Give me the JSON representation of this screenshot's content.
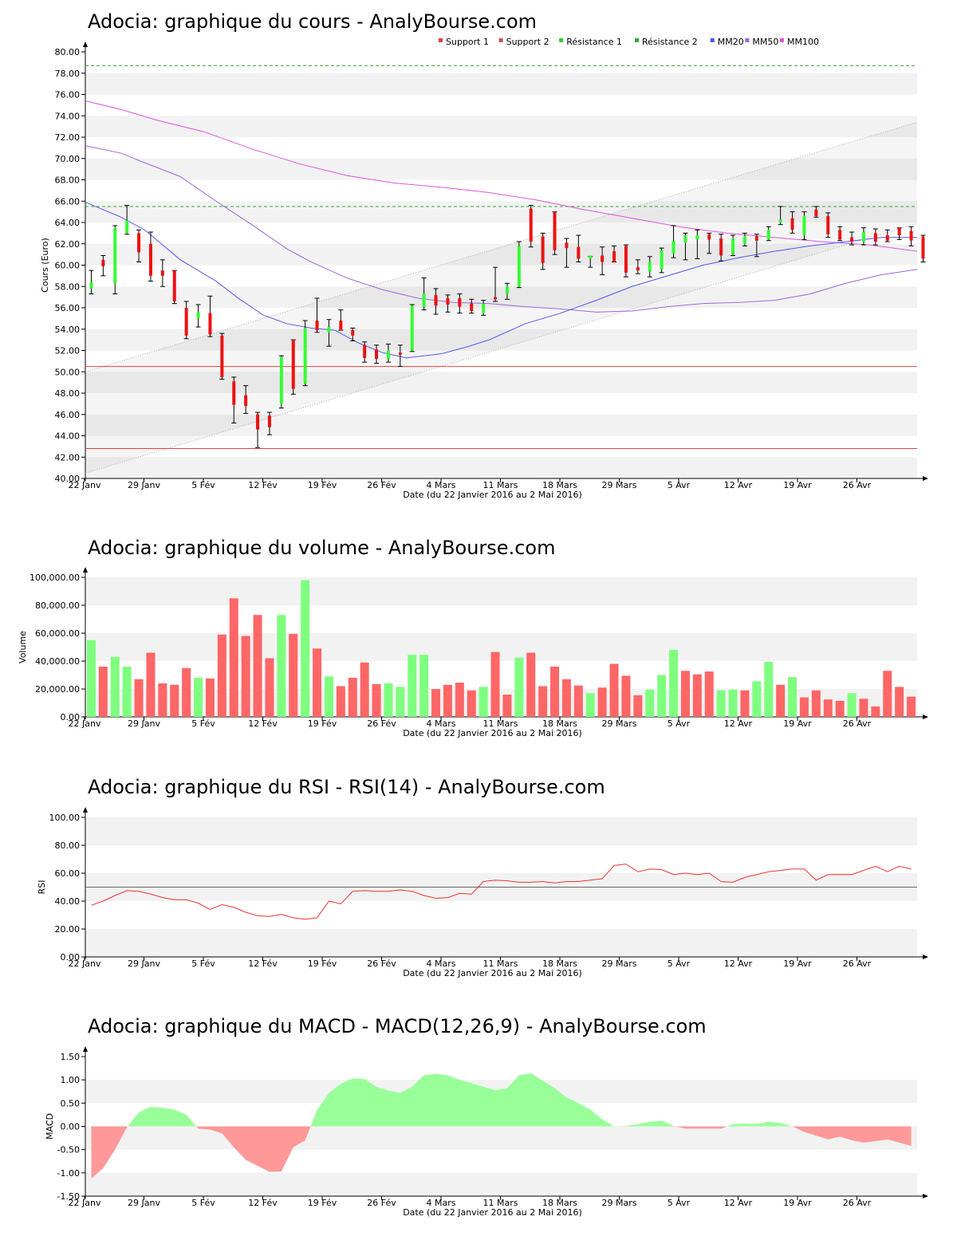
{
  "colors": {
    "up": "#33ff33",
    "down": "#ee1111",
    "support": "#dd4444",
    "resistance": "#33aa33",
    "mm20": "#5555ee",
    "mm50": "#9966dd",
    "mm100": "#dd55dd",
    "vol_up": "#7fff7f",
    "vol_down": "#ff6666",
    "macd_pos": "#99ff99",
    "macd_neg": "#ff9999",
    "rsi_line": "#ee3333",
    "grid_band": "#f2f2f2"
  },
  "common": {
    "xlabel": "Date (du 22 Janvier 2016 au 2 Mai 2016)",
    "date_ticks": [
      {
        "label": "22 Janv",
        "day": 0
      },
      {
        "label": "29 Janv",
        "day": 5
      },
      {
        "label": "5 Fév",
        "day": 10
      },
      {
        "label": "12 Fév",
        "day": 15
      },
      {
        "label": "19 Fév",
        "day": 20
      },
      {
        "label": "26 Fév",
        "day": 25
      },
      {
        "label": "4 Mars",
        "day": 30
      },
      {
        "label": "11 Mars",
        "day": 35
      },
      {
        "label": "18 Mars",
        "day": 40
      },
      {
        "label": "29 Mars",
        "day": 45
      },
      {
        "label": "5 Avr",
        "day": 50
      },
      {
        "label": "12 Avr",
        "day": 55
      },
      {
        "label": "19 Avr",
        "day": 60
      },
      {
        "label": "26 Avr",
        "day": 65
      }
    ]
  },
  "chart_data": [
    {
      "id": "price",
      "type": "candlestick",
      "title": "Adocia: graphique du cours - AnalyBourse.com",
      "ylabel": "Cours (Euro)",
      "xlabel": "Date (du 22 Janvier 2016 au 2 Mai 2016)",
      "ylim": [
        40,
        80
      ],
      "yticks": [
        "40.00",
        "42.00",
        "44.00",
        "46.00",
        "48.00",
        "50.00",
        "52.00",
        "54.00",
        "56.00",
        "58.00",
        "60.00",
        "62.00",
        "64.00",
        "66.00",
        "68.00",
        "70.00",
        "72.00",
        "74.00",
        "76.00",
        "78.00",
        "80.00"
      ],
      "legend": [
        "Support 1",
        "Support 2",
        "Résistance 1",
        "Résistance 2",
        "MM20",
        "MM50",
        "MM100"
      ],
      "legend_colors": [
        "#dd4444",
        "#bb5555",
        "#33cc33",
        "#33aa33",
        "#5555ee",
        "#9966dd",
        "#dd55dd"
      ],
      "support_1": 50.5,
      "support_2": 42.8,
      "resistance_1": 65.5,
      "resistance_2": 78.7,
      "candles": [
        {
          "o": 57.8,
          "h": 59.5,
          "l": 57.3,
          "c": 58.4
        },
        {
          "o": 60.5,
          "h": 60.9,
          "l": 59.0,
          "c": 59.9
        },
        {
          "o": 58.3,
          "h": 63.7,
          "l": 57.3,
          "c": 63.5
        },
        {
          "o": 63.0,
          "h": 65.6,
          "l": 62.9,
          "c": 64.2
        },
        {
          "o": 63.0,
          "h": 63.3,
          "l": 60.3,
          "c": 61.2
        },
        {
          "o": 62.0,
          "h": 63.1,
          "l": 58.5,
          "c": 59.0
        },
        {
          "o": 59.5,
          "h": 60.5,
          "l": 58.0,
          "c": 59.0
        },
        {
          "o": 59.5,
          "h": 59.5,
          "l": 56.4,
          "c": 56.6
        },
        {
          "o": 56.0,
          "h": 56.6,
          "l": 53.1,
          "c": 53.4
        },
        {
          "o": 55.0,
          "h": 56.3,
          "l": 54.2,
          "c": 55.6
        },
        {
          "o": 55.5,
          "h": 57.1,
          "l": 53.3,
          "c": 53.5
        },
        {
          "o": 53.4,
          "h": 53.6,
          "l": 49.3,
          "c": 49.5
        },
        {
          "o": 49.1,
          "h": 49.5,
          "l": 45.2,
          "c": 46.9
        },
        {
          "o": 47.8,
          "h": 48.7,
          "l": 46.1,
          "c": 46.8
        },
        {
          "o": 46.0,
          "h": 46.2,
          "l": 42.9,
          "c": 44.6
        },
        {
          "o": 45.9,
          "h": 46.2,
          "l": 44.1,
          "c": 44.8
        },
        {
          "o": 47.0,
          "h": 51.5,
          "l": 46.6,
          "c": 51.4
        },
        {
          "o": 53.0,
          "h": 53.0,
          "l": 47.9,
          "c": 48.4
        },
        {
          "o": 48.9,
          "h": 54.8,
          "l": 48.7,
          "c": 54.1
        },
        {
          "o": 54.8,
          "h": 56.9,
          "l": 53.7,
          "c": 53.9
        },
        {
          "o": 53.7,
          "h": 54.9,
          "l": 52.4,
          "c": 54.2
        },
        {
          "o": 54.8,
          "h": 55.8,
          "l": 53.9,
          "c": 53.9
        },
        {
          "o": 53.9,
          "h": 54.1,
          "l": 52.9,
          "c": 53.4
        },
        {
          "o": 52.5,
          "h": 52.8,
          "l": 50.9,
          "c": 51.3
        },
        {
          "o": 52.1,
          "h": 52.5,
          "l": 50.8,
          "c": 51.2
        },
        {
          "o": 51.2,
          "h": 52.6,
          "l": 50.9,
          "c": 52.0
        },
        {
          "o": 51.8,
          "h": 52.5,
          "l": 50.5,
          "c": 51.6
        },
        {
          "o": 52.0,
          "h": 56.3,
          "l": 51.9,
          "c": 56.2
        },
        {
          "o": 56.1,
          "h": 58.8,
          "l": 55.8,
          "c": 57.3
        },
        {
          "o": 57.2,
          "h": 57.8,
          "l": 55.4,
          "c": 56.2
        },
        {
          "o": 56.9,
          "h": 57.2,
          "l": 55.6,
          "c": 56.3
        },
        {
          "o": 56.9,
          "h": 57.3,
          "l": 55.5,
          "c": 56.1
        },
        {
          "o": 56.4,
          "h": 56.8,
          "l": 55.5,
          "c": 55.7
        },
        {
          "o": 55.5,
          "h": 56.7,
          "l": 55.3,
          "c": 56.4
        },
        {
          "o": 57.0,
          "h": 59.8,
          "l": 56.6,
          "c": 56.8
        },
        {
          "o": 57.3,
          "h": 58.3,
          "l": 56.8,
          "c": 58.0
        },
        {
          "o": 58.0,
          "h": 62.2,
          "l": 57.9,
          "c": 61.8
        },
        {
          "o": 65.3,
          "h": 65.6,
          "l": 61.7,
          "c": 62.2
        },
        {
          "o": 62.7,
          "h": 63.0,
          "l": 59.6,
          "c": 60.2
        },
        {
          "o": 65.0,
          "h": 65.0,
          "l": 61.0,
          "c": 61.4
        },
        {
          "o": 62.1,
          "h": 62.5,
          "l": 59.8,
          "c": 61.6
        },
        {
          "o": 61.7,
          "h": 62.8,
          "l": 60.3,
          "c": 60.6
        },
        {
          "o": 60.6,
          "h": 60.8,
          "l": 59.8,
          "c": 60.9
        },
        {
          "o": 60.9,
          "h": 61.7,
          "l": 59.1,
          "c": 60.3
        },
        {
          "o": 61.3,
          "h": 61.8,
          "l": 60.3,
          "c": 60.3
        },
        {
          "o": 61.8,
          "h": 61.9,
          "l": 58.9,
          "c": 59.3
        },
        {
          "o": 59.8,
          "h": 60.5,
          "l": 59.2,
          "c": 59.5
        },
        {
          "o": 59.4,
          "h": 60.8,
          "l": 58.9,
          "c": 60.3
        },
        {
          "o": 59.6,
          "h": 61.6,
          "l": 59.3,
          "c": 61.4
        },
        {
          "o": 61.1,
          "h": 63.7,
          "l": 60.7,
          "c": 62.3
        },
        {
          "o": 62.1,
          "h": 63.0,
          "l": 60.5,
          "c": 62.8
        },
        {
          "o": 62.4,
          "h": 63.3,
          "l": 60.6,
          "c": 62.8
        },
        {
          "o": 62.9,
          "h": 63.0,
          "l": 61.1,
          "c": 62.4
        },
        {
          "o": 62.5,
          "h": 62.9,
          "l": 60.4,
          "c": 60.9
        },
        {
          "o": 61.0,
          "h": 62.8,
          "l": 60.9,
          "c": 62.5
        },
        {
          "o": 62.0,
          "h": 63.0,
          "l": 61.8,
          "c": 62.7
        },
        {
          "o": 62.7,
          "h": 62.9,
          "l": 60.8,
          "c": 62.3
        },
        {
          "o": 62.4,
          "h": 63.6,
          "l": 62.3,
          "c": 63.3
        },
        {
          "o": 64.0,
          "h": 65.5,
          "l": 63.8,
          "c": 64.3
        },
        {
          "o": 64.4,
          "h": 65.0,
          "l": 63.0,
          "c": 63.3
        },
        {
          "o": 62.8,
          "h": 65.0,
          "l": 62.4,
          "c": 64.6
        },
        {
          "o": 65.2,
          "h": 65.5,
          "l": 64.5,
          "c": 64.6
        },
        {
          "o": 64.6,
          "h": 64.9,
          "l": 62.6,
          "c": 62.9
        },
        {
          "o": 63.3,
          "h": 63.6,
          "l": 62.3,
          "c": 62.4
        },
        {
          "o": 62.6,
          "h": 63.1,
          "l": 61.9,
          "c": 62.2
        },
        {
          "o": 62.2,
          "h": 63.5,
          "l": 61.9,
          "c": 63.1
        },
        {
          "o": 63.0,
          "h": 63.4,
          "l": 61.9,
          "c": 62.2
        },
        {
          "o": 62.8,
          "h": 63.3,
          "l": 62.2,
          "c": 62.3
        },
        {
          "o": 63.5,
          "h": 63.5,
          "l": 62.4,
          "c": 62.8
        },
        {
          "o": 63.2,
          "h": 63.6,
          "l": 61.8,
          "c": 62.3
        },
        {
          "o": 62.7,
          "h": 62.8,
          "l": 60.3,
          "c": 60.6
        }
      ],
      "mm20": [
        [
          0,
          65.9
        ],
        [
          3,
          64.5
        ],
        [
          5,
          63.3
        ],
        [
          8,
          60.5
        ],
        [
          11,
          58.5
        ],
        [
          13,
          56.8
        ],
        [
          15,
          55.3
        ],
        [
          17,
          54.5
        ],
        [
          19,
          54.1
        ],
        [
          21,
          53.9
        ],
        [
          23,
          52.7
        ],
        [
          25,
          51.8
        ],
        [
          27,
          51.3
        ],
        [
          30,
          51.7
        ],
        [
          32,
          52.3
        ],
        [
          34,
          53.0
        ],
        [
          37,
          54.5
        ],
        [
          40,
          55.5
        ],
        [
          43,
          56.7
        ],
        [
          46,
          58.0
        ],
        [
          49,
          59.0
        ],
        [
          52,
          60.0
        ],
        [
          55,
          60.7
        ],
        [
          58,
          61.3
        ],
        [
          61,
          61.8
        ],
        [
          64,
          62.2
        ],
        [
          67,
          62.6
        ],
        [
          70,
          62.6
        ]
      ],
      "mm50": [
        [
          0,
          71.2
        ],
        [
          3,
          70.5
        ],
        [
          5,
          69.6
        ],
        [
          8,
          68.3
        ],
        [
          11,
          66.0
        ],
        [
          14,
          63.8
        ],
        [
          17,
          61.5
        ],
        [
          19,
          60.3
        ],
        [
          22,
          58.8
        ],
        [
          25,
          57.7
        ],
        [
          28,
          56.9
        ],
        [
          31,
          56.5
        ],
        [
          34,
          56.4
        ],
        [
          37,
          56.1
        ],
        [
          40,
          55.9
        ],
        [
          43,
          55.6
        ],
        [
          46,
          55.7
        ],
        [
          49,
          56.1
        ],
        [
          52,
          56.4
        ],
        [
          55,
          56.5
        ],
        [
          58,
          56.7
        ],
        [
          61,
          57.3
        ],
        [
          64,
          58.3
        ],
        [
          67,
          59.1
        ],
        [
          70,
          59.6
        ]
      ],
      "mm100": [
        [
          0,
          75.4
        ],
        [
          3,
          74.6
        ],
        [
          6,
          73.6
        ],
        [
          10,
          72.5
        ],
        [
          14,
          70.9
        ],
        [
          18,
          69.5
        ],
        [
          22,
          68.4
        ],
        [
          26,
          67.7
        ],
        [
          30,
          67.3
        ],
        [
          34,
          66.8
        ],
        [
          38,
          66.1
        ],
        [
          42,
          65.2
        ],
        [
          46,
          64.4
        ],
        [
          50,
          63.6
        ],
        [
          54,
          63.0
        ],
        [
          58,
          62.6
        ],
        [
          62,
          62.2
        ],
        [
          66,
          61.9
        ],
        [
          70,
          61.3
        ]
      ],
      "channel_upper": [
        [
          0,
          50.0
        ],
        [
          70,
          73.4
        ]
      ],
      "channel_lower": [
        [
          0,
          40.5
        ],
        [
          70,
          63.9
        ]
      ]
    },
    {
      "id": "volume",
      "type": "bar",
      "title": "Adocia: graphique du volume - AnalyBourse.com",
      "ylabel": "Volume",
      "xlabel": "Date (du 22 Janvier 2016 au 2 Mai 2016)",
      "ylim": [
        0,
        100000
      ],
      "yticks": [
        "0.00",
        "20,000.00",
        "40,000.00",
        "60,000.00",
        "80,000.00",
        "100,000.00"
      ],
      "values": [
        55000,
        36000,
        43000,
        36000,
        27000,
        46000,
        24000,
        23000,
        35000,
        28000,
        27500,
        59000,
        85000,
        58000,
        73000,
        42000,
        73000,
        59500,
        98000,
        49000,
        29000,
        22000,
        28000,
        39000,
        23500,
        24000,
        21500,
        44500,
        44500,
        20000,
        23000,
        24500,
        19000,
        21500,
        46500,
        16000,
        42500,
        46000,
        22000,
        36000,
        27000,
        22500,
        17000,
        21000,
        38000,
        29500,
        15500,
        19500,
        30000,
        48000,
        33000,
        30500,
        32500,
        19000,
        19500,
        19000,
        25500,
        39500,
        23000,
        28500,
        14000,
        19000,
        12500,
        11500,
        17000,
        13000,
        7500,
        33000,
        21500,
        14500
      ],
      "directions": [
        "u",
        "d",
        "u",
        "u",
        "d",
        "d",
        "d",
        "d",
        "d",
        "u",
        "d",
        "d",
        "d",
        "d",
        "d",
        "d",
        "u",
        "d",
        "u",
        "d",
        "u",
        "d",
        "d",
        "d",
        "d",
        "u",
        "u",
        "u",
        "u",
        "d",
        "d",
        "d",
        "d",
        "u",
        "d",
        "d",
        "u",
        "d",
        "d",
        "d",
        "d",
        "d",
        "u",
        "d",
        "d",
        "d",
        "d",
        "u",
        "u",
        "u",
        "d",
        "d",
        "d",
        "u",
        "u",
        "d",
        "u",
        "u",
        "d",
        "u",
        "d",
        "d",
        "d",
        "d",
        "u",
        "d",
        "d",
        "d",
        "d",
        "d"
      ]
    },
    {
      "id": "rsi",
      "type": "line",
      "title": "Adocia: graphique du RSI - RSI(14) - AnalyBourse.com",
      "ylabel": "RSI",
      "xlabel": "Date (du 22 Janvier 2016 au 2 Mai 2016)",
      "ylim": [
        0,
        100
      ],
      "yticks": [
        "0.00",
        "20.00",
        "40.00",
        "60.00",
        "80.00",
        "100.00"
      ],
      "reference": 50,
      "values": [
        37,
        40,
        44,
        47.5,
        47,
        45,
        42.5,
        41,
        41,
        38.5,
        34,
        37.5,
        35.5,
        32,
        29.5,
        29,
        30.5,
        28,
        27,
        28,
        40,
        38,
        47,
        47.5,
        47,
        47,
        48,
        47,
        44,
        42,
        42.5,
        45.5,
        45,
        54,
        55,
        54.5,
        53.5,
        53.5,
        54,
        53,
        54,
        54,
        55,
        56,
        65.5,
        66.5,
        61,
        63,
        62.5,
        59,
        60,
        59,
        60,
        54,
        53.5,
        57,
        59,
        61,
        62,
        63,
        63,
        55,
        59,
        59,
        59,
        62,
        65,
        61,
        65,
        63
      ]
    },
    {
      "id": "macd",
      "type": "area",
      "title": "Adocia: graphique du MACD - MACD(12,26,9) - AnalyBourse.com",
      "ylabel": "MACD",
      "xlabel": "Date (du 22 Janvier 2016 au 2 Mai 2016)",
      "ylim": [
        -1.5,
        1.5
      ],
      "yticks": [
        "-1.50",
        "-1.00",
        "-0.50",
        "0.00",
        "0.50",
        "1.00",
        "1.50"
      ],
      "values": [
        -1.12,
        -0.9,
        -0.5,
        -0.02,
        0.3,
        0.42,
        0.4,
        0.36,
        0.25,
        -0.05,
        -0.07,
        -0.15,
        -0.45,
        -0.72,
        -0.85,
        -0.98,
        -0.97,
        -0.45,
        -0.3,
        0.35,
        0.72,
        0.92,
        1.03,
        1.02,
        0.85,
        0.77,
        0.72,
        0.85,
        1.1,
        1.13,
        1.1,
        1.0,
        0.93,
        0.85,
        0.78,
        0.82,
        1.1,
        1.14,
        0.98,
        0.82,
        0.62,
        0.5,
        0.36,
        0.15,
        0.0,
        0.01,
        0.05,
        0.1,
        0.12,
        0.01,
        -0.05,
        -0.05,
        -0.05,
        -0.05,
        0.05,
        0.06,
        0.05,
        0.1,
        0.07,
        0.0,
        -0.12,
        -0.2,
        -0.28,
        -0.22,
        -0.3,
        -0.35,
        -0.32,
        -0.28,
        -0.35,
        -0.42
      ]
    }
  ]
}
